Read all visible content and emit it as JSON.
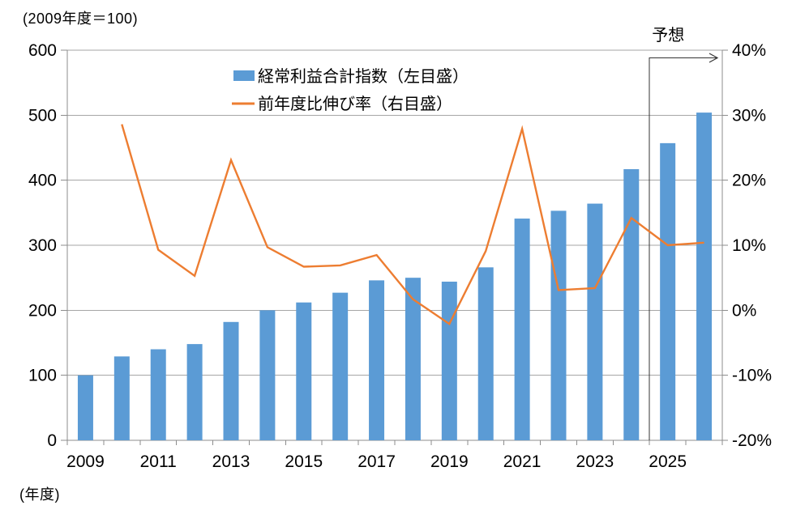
{
  "chart_data": {
    "type": "bar+line",
    "title": "",
    "unit_note": "(2009年度＝100)",
    "x_axis_unit": "(年度)",
    "categories": [
      "2009",
      "2010",
      "2011",
      "2012",
      "2013",
      "2014",
      "2015",
      "2016",
      "2017",
      "2018",
      "2019",
      "2020",
      "2021",
      "2022",
      "2023",
      "2024",
      "2025",
      "2026"
    ],
    "x_tick_labels": [
      "2009",
      "2011",
      "2013",
      "2015",
      "2017",
      "2019",
      "2021",
      "2023",
      "2025"
    ],
    "series": [
      {
        "name": "経常利益合計指数（左目盛）",
        "type": "bar",
        "axis": "left",
        "color": "#5B9BD5",
        "values": [
          100,
          129,
          140,
          148,
          182,
          200,
          212,
          227,
          246,
          250,
          244,
          266,
          341,
          353,
          364,
          417,
          457,
          504
        ]
      },
      {
        "name": "前年度比伸び率（右目盛）",
        "type": "line",
        "axis": "right",
        "color": "#ED7D31",
        "values": [
          null,
          28.6,
          9.3,
          5.3,
          23.1,
          9.7,
          6.7,
          6.9,
          8.5,
          1.7,
          -2.1,
          9.1,
          27.9,
          3.1,
          3.4,
          14.2,
          10.0,
          10.4
        ]
      }
    ],
    "left_axis": {
      "min": 0,
      "max": 600,
      "step": 100,
      "tick_labels": [
        "0",
        "100",
        "200",
        "300",
        "400",
        "500",
        "600"
      ]
    },
    "right_axis": {
      "min": -20,
      "max": 40,
      "step": 10,
      "tick_labels": [
        "-20%",
        "-10%",
        "0%",
        "10%",
        "20%",
        "30%",
        "40%"
      ]
    },
    "forecast": {
      "label": "予想",
      "start_category": "2025"
    },
    "legend_position": "top-center",
    "grid": true
  },
  "colors": {
    "bar": "#5B9BD5",
    "line": "#ED7D31",
    "gridline": "#A6A6A6",
    "axis": "#8C8C8C",
    "forecast_line": "#333333",
    "text": "#000000",
    "background": "#FFFFFF"
  }
}
